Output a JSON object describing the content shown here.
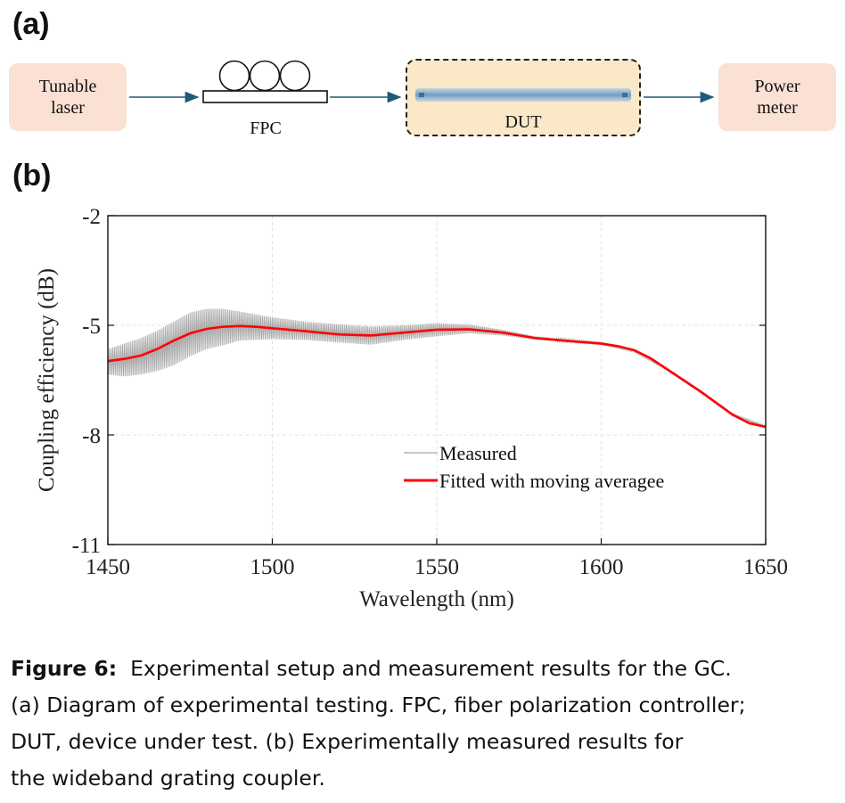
{
  "panels": {
    "a": "(a)",
    "b": "(b)"
  },
  "diagram": {
    "laser": "Tunable\nlaser",
    "fpc": "FPC",
    "dut": "DUT",
    "meter": "Power\nmeter"
  },
  "chart_data": {
    "type": "line",
    "xlabel": "Wavelength (nm)",
    "ylabel": "Coupling efficiency (dB)",
    "xlim": [
      1450,
      1650
    ],
    "ylim": [
      -11,
      -2
    ],
    "xticks": [
      1450,
      1500,
      1550,
      1600,
      1650
    ],
    "yticks": [
      -2,
      -5,
      -8,
      -11
    ],
    "grid": true,
    "legend_position": "lower-center",
    "series": [
      {
        "name": "Measured",
        "color": "#a9a9a9",
        "style": "oscillating",
        "x": [
          1450,
          1455,
          1460,
          1465,
          1470,
          1475,
          1480,
          1485,
          1490,
          1495,
          1500,
          1510,
          1520,
          1530,
          1540,
          1550,
          1560,
          1570,
          1580,
          1590,
          1600,
          1610,
          1620,
          1630,
          1640,
          1650
        ],
        "y": [
          -6.0,
          -5.95,
          -5.85,
          -5.7,
          -5.5,
          -5.25,
          -5.1,
          -5.05,
          -5.02,
          -5.05,
          -5.08,
          -5.15,
          -5.22,
          -5.28,
          -5.2,
          -5.12,
          -5.1,
          -5.2,
          -5.35,
          -5.42,
          -5.5,
          -5.7,
          -6.2,
          -6.8,
          -7.45,
          -7.78
        ],
        "amplitude": [
          0.35,
          0.45,
          0.5,
          0.55,
          0.6,
          0.6,
          0.55,
          0.5,
          0.4,
          0.35,
          0.3,
          0.25,
          0.25,
          0.25,
          0.2,
          0.18,
          0.12,
          0.08,
          0.05,
          0.04,
          0.03,
          0.03,
          0.03,
          0.03,
          0.03,
          0.03
        ]
      },
      {
        "name": "Fitted with moving averagee",
        "color": "#ff0000",
        "x": [
          1450,
          1455,
          1460,
          1465,
          1470,
          1475,
          1480,
          1485,
          1490,
          1495,
          1500,
          1510,
          1520,
          1530,
          1540,
          1550,
          1560,
          1570,
          1580,
          1590,
          1600,
          1605,
          1610,
          1615,
          1620,
          1630,
          1640,
          1645,
          1650
        ],
        "y": [
          -5.98,
          -5.92,
          -5.83,
          -5.65,
          -5.42,
          -5.22,
          -5.1,
          -5.04,
          -5.02,
          -5.04,
          -5.08,
          -5.16,
          -5.25,
          -5.28,
          -5.2,
          -5.12,
          -5.11,
          -5.2,
          -5.35,
          -5.43,
          -5.5,
          -5.57,
          -5.68,
          -5.9,
          -6.2,
          -6.8,
          -7.45,
          -7.68,
          -7.78
        ]
      }
    ]
  },
  "caption": {
    "label": "Figure 6:",
    "lines": [
      "Experimental setup and measurement results for the GC.",
      "(a) Diagram of experimental testing. FPC, fiber polarization controller;",
      "DUT, device under test. (b) Experimentally measured results for",
      "the wideband grating coupler."
    ]
  }
}
